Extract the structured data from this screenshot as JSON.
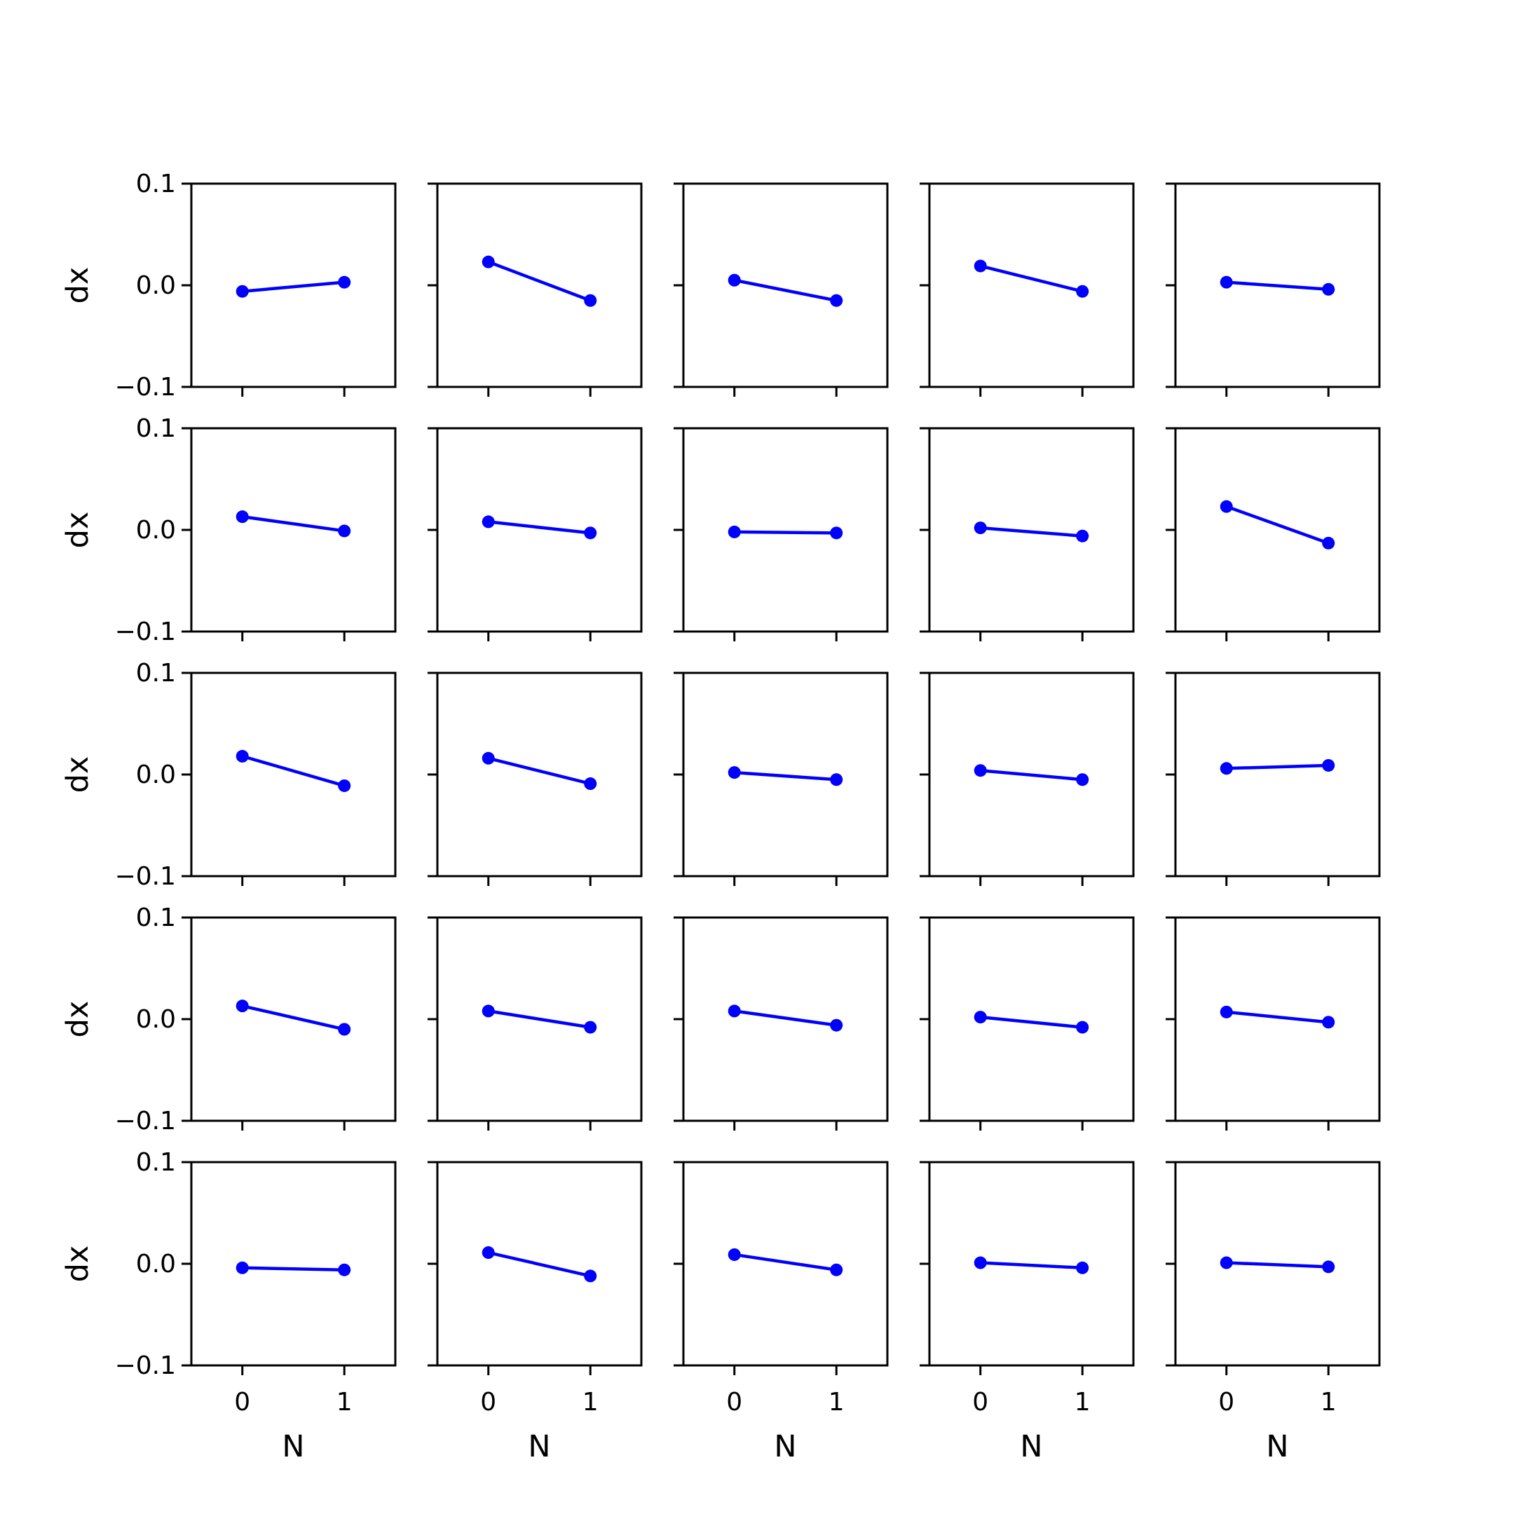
{
  "chart_data": {
    "type": "line",
    "layout": "5x5 grid of subplots (row-major), shared x and y axes",
    "series_color": "#0000ff",
    "xlabel": "N",
    "ylabel": "dx",
    "x": [
      0,
      1
    ],
    "xticks": [
      "0",
      "1"
    ],
    "xlim": [
      -0.5,
      1.5
    ],
    "ylim": [
      -0.1,
      0.1
    ],
    "yticks": [
      "0.1",
      "0.0",
      "−0.1"
    ],
    "yticks_values": [
      0.1,
      0.0,
      -0.1
    ],
    "grid": false,
    "legend": "none",
    "panels": [
      {
        "values": [
          -0.006,
          0.003
        ]
      },
      {
        "values": [
          0.023,
          -0.015
        ]
      },
      {
        "values": [
          0.005,
          -0.015
        ]
      },
      {
        "values": [
          0.019,
          -0.006
        ]
      },
      {
        "values": [
          0.003,
          -0.004
        ]
      },
      {
        "values": [
          0.013,
          -0.001
        ]
      },
      {
        "values": [
          0.008,
          -0.003
        ]
      },
      {
        "values": [
          -0.002,
          -0.003
        ]
      },
      {
        "values": [
          0.002,
          -0.006
        ]
      },
      {
        "values": [
          0.023,
          -0.013
        ]
      },
      {
        "values": [
          0.018,
          -0.011
        ]
      },
      {
        "values": [
          0.016,
          -0.009
        ]
      },
      {
        "values": [
          0.002,
          -0.005
        ]
      },
      {
        "values": [
          0.004,
          -0.005
        ]
      },
      {
        "values": [
          0.006,
          0.009
        ]
      },
      {
        "values": [
          0.013,
          -0.01
        ]
      },
      {
        "values": [
          0.008,
          -0.008
        ]
      },
      {
        "values": [
          0.008,
          -0.006
        ]
      },
      {
        "values": [
          0.002,
          -0.008
        ]
      },
      {
        "values": [
          0.007,
          -0.003
        ]
      },
      {
        "values": [
          -0.004,
          -0.006
        ]
      },
      {
        "values": [
          0.011,
          -0.012
        ]
      },
      {
        "values": [
          0.009,
          -0.006
        ]
      },
      {
        "values": [
          0.001,
          -0.004
        ]
      },
      {
        "values": [
          0.001,
          -0.003
        ]
      }
    ]
  }
}
